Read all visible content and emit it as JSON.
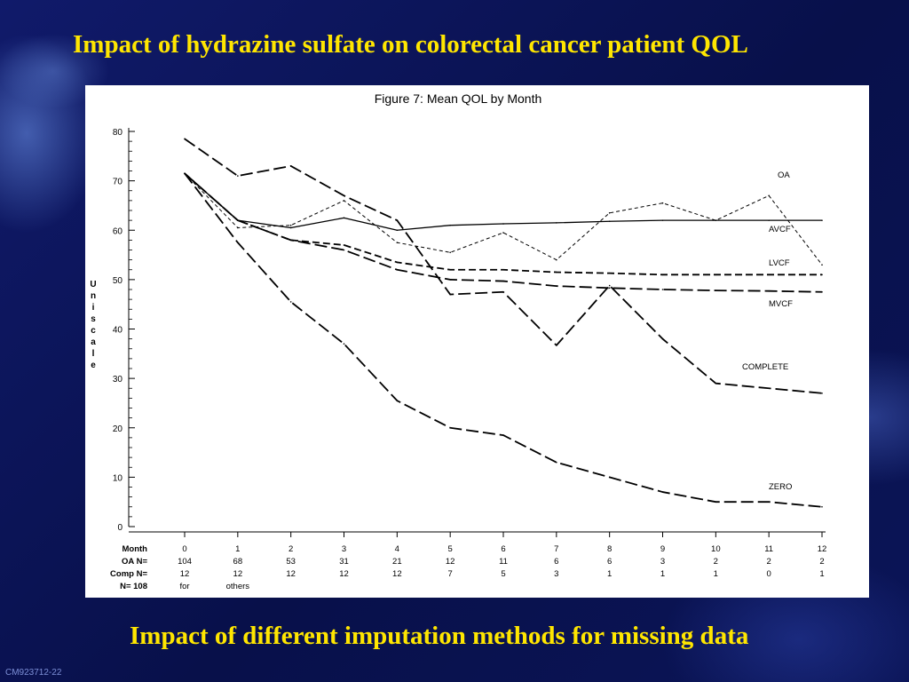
{
  "slide": {
    "title": "Impact of hydrazine sulfate on colorectal cancer patient QOL",
    "subtitle": "Impact of different imputation methods for missing data",
    "code": "CM923712-22"
  },
  "colors": {
    "background": "#0a1250",
    "title": "#ffe600",
    "chart_background": "#ffffff"
  },
  "chart_data": {
    "type": "line",
    "title": "Figure 7: Mean QOL by Month",
    "ylabel": "Uniscale",
    "ylim": [
      0,
      80
    ],
    "yticks": [
      0,
      10,
      20,
      30,
      40,
      50,
      60,
      70,
      80
    ],
    "x": [
      0,
      1,
      2,
      3,
      4,
      5,
      6,
      7,
      8,
      9,
      10,
      11,
      12
    ],
    "series": [
      {
        "name": "OA",
        "style": "short-dash",
        "values": [
          71.5,
          60.5,
          61,
          66,
          57.5,
          55.5,
          59.5,
          54,
          63.5,
          65.5,
          62,
          67,
          53
        ]
      },
      {
        "name": "AVCF",
        "style": "solid",
        "values": [
          71.5,
          62,
          60.5,
          62.5,
          60,
          61,
          61.3,
          61.5,
          61.8,
          62,
          62,
          62,
          62
        ]
      },
      {
        "name": "LVCF",
        "style": "medium-dash",
        "values": [
          71.5,
          62,
          58,
          57,
          53.5,
          52,
          52,
          51.5,
          51.3,
          51,
          51,
          51,
          51
        ]
      },
      {
        "name": "MVCF",
        "style": "long-dash",
        "values": [
          71.5,
          62,
          58,
          56,
          52,
          50,
          49.7,
          48.7,
          48.3,
          48,
          47.8,
          47.7,
          47.5
        ]
      },
      {
        "name": "COMPLETE",
        "style": "long-dash",
        "values": [
          78.5,
          71,
          73,
          67,
          62,
          47,
          47.5,
          36.7,
          48.8,
          38,
          29,
          28,
          27
        ]
      },
      {
        "name": "ZERO",
        "style": "long-dash",
        "values": [
          71.5,
          57.5,
          45.5,
          37,
          25.5,
          20,
          18.5,
          13,
          10,
          7,
          5,
          5,
          4
        ]
      }
    ],
    "table": [
      {
        "label": "Month",
        "values": [
          "0",
          "1",
          "2",
          "3",
          "4",
          "5",
          "6",
          "7",
          "8",
          "9",
          "10",
          "11",
          "12"
        ]
      },
      {
        "label": "OA N=",
        "values": [
          "104",
          "68",
          "53",
          "31",
          "21",
          "12",
          "11",
          "6",
          "6",
          "3",
          "2",
          "2",
          "2"
        ]
      },
      {
        "label": "Comp N=",
        "values": [
          "12",
          "12",
          "12",
          "12",
          "12",
          "7",
          "5",
          "3",
          "1",
          "1",
          "1",
          "0",
          "1"
        ]
      },
      {
        "label": "N= 108",
        "values": [
          "for",
          "others",
          "",
          "",
          "",
          "",
          "",
          "",
          "",
          "",
          "",
          "",
          ""
        ]
      }
    ]
  }
}
